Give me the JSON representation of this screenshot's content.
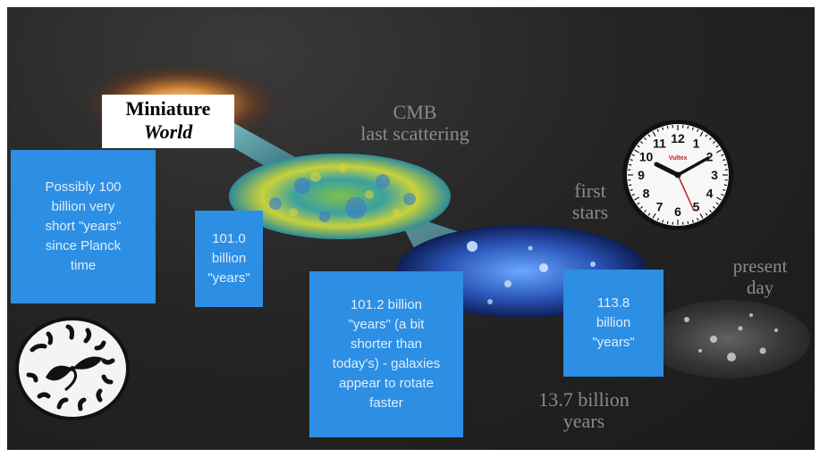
{
  "title": {
    "line1": "Miniature",
    "line2": "World"
  },
  "labels": {
    "cmb_line1": "CMB",
    "cmb_line2": "last scattering",
    "stars_line1": "first",
    "stars_line2": "stars",
    "present_line1": "present",
    "present_line2": "day",
    "age_line1": "13.7 billion",
    "age_line2": "years"
  },
  "boxes": {
    "planck": [
      "Possibly 100",
      "billion very",
      "short \"years\"",
      "since Planck",
      "time"
    ],
    "cmb": [
      "101.0",
      "billion",
      "\"years\""
    ],
    "galaxies": [
      "101.2 billion",
      "\"years\" (a bit",
      "shorter than",
      "today's) - galaxies",
      "appear to rotate",
      "faster"
    ],
    "present": [
      "113.8",
      "billion",
      "\"years\""
    ]
  },
  "clock": {
    "numerals": [
      "12",
      "1",
      "2",
      "3",
      "4",
      "5",
      "6",
      "7",
      "8",
      "9",
      "10",
      "11"
    ],
    "brand": "Vultex"
  },
  "colors": {
    "box_blue": "#2d8fe3",
    "box_text": "#dfeeff",
    "background": "#1e1e1e",
    "gray_label": "#8a8a8a"
  }
}
